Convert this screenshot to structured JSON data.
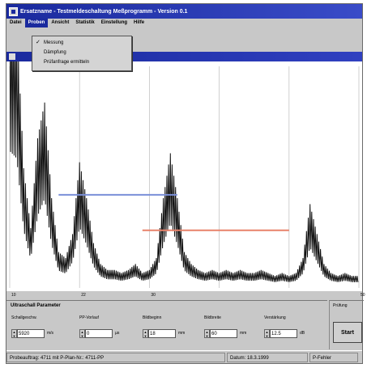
{
  "window": {
    "title": "Ersatzname - Testmeldeschaltung Meßprogramm - Version 0.1"
  },
  "menu": {
    "items": [
      "Datei",
      "Proben",
      "Ansicht",
      "Statistik",
      "Einstellung",
      "Hilfe"
    ],
    "active_index": 1
  },
  "dropdown": {
    "items": [
      {
        "label": "Messung",
        "checked": true
      },
      {
        "label": "Dämpfung",
        "checked": false
      },
      {
        "label": "Prüfanfrage ermitteln",
        "checked": false
      }
    ]
  },
  "chart_data": {
    "type": "line",
    "x_ticks": [
      "10",
      "22",
      "30",
      "",
      "",
      "50"
    ],
    "series": [
      {
        "x": [
          0,
          1,
          2,
          3,
          4,
          5,
          6,
          7,
          8,
          9,
          10,
          11,
          12,
          13,
          14,
          15,
          16,
          17,
          18,
          19,
          20,
          21,
          22,
          23,
          24,
          25,
          26,
          27,
          28,
          29,
          30,
          31,
          32,
          33,
          34,
          35,
          36,
          37,
          38,
          39,
          40,
          41,
          42,
          43,
          44,
          45,
          46,
          47,
          48,
          49,
          50
        ],
        "y": [
          0.95,
          0.9,
          0.4,
          0.2,
          0.5,
          0.62,
          0.3,
          0.12,
          0.1,
          0.18,
          0.42,
          0.3,
          0.15,
          0.08,
          0.06,
          0.06,
          0.05,
          0.06,
          0.08,
          0.05,
          0.06,
          0.1,
          0.3,
          0.45,
          0.3,
          0.12,
          0.08,
          0.06,
          0.05,
          0.06,
          0.05,
          0.06,
          0.05,
          0.06,
          0.05,
          0.05,
          0.06,
          0.05,
          0.04,
          0.05,
          0.04,
          0.05,
          0.1,
          0.28,
          0.18,
          0.08,
          0.05,
          0.04,
          0.05,
          0.04,
          0.04
        ]
      }
    ],
    "markers": [
      {
        "color": "#7a8fd8",
        "x_start": 7,
        "x_end": 24,
        "y": 0.42
      },
      {
        "color": "#e8826a",
        "x_start": 19,
        "x_end": 40,
        "y": 0.26
      }
    ],
    "ylim": [
      0,
      1
    ],
    "xlim": [
      0,
      50
    ],
    "grid": true
  },
  "params": {
    "title": "Ultraschall Parameter",
    "fields": [
      {
        "label": "Schallgeschw.",
        "value": "5920",
        "unit": "m/s"
      },
      {
        "label": "PP-Vorlauf",
        "value": "0",
        "unit": "µs"
      },
      {
        "label": "Bildbeginn",
        "value": "18",
        "unit": "mm"
      },
      {
        "label": "Bildbreite",
        "value": "60",
        "unit": "mm"
      },
      {
        "label": "Verstärkung",
        "value": "12.5",
        "unit": "dB"
      }
    ]
  },
  "rightpanel": {
    "label": "Prüfung",
    "button": "Start"
  },
  "status": {
    "left": "Probeauftrag: 4711  mit P-Plan-Nr.: 4711-PP",
    "date": "Datum: 18.3.1999",
    "right": "P-Fehler"
  }
}
